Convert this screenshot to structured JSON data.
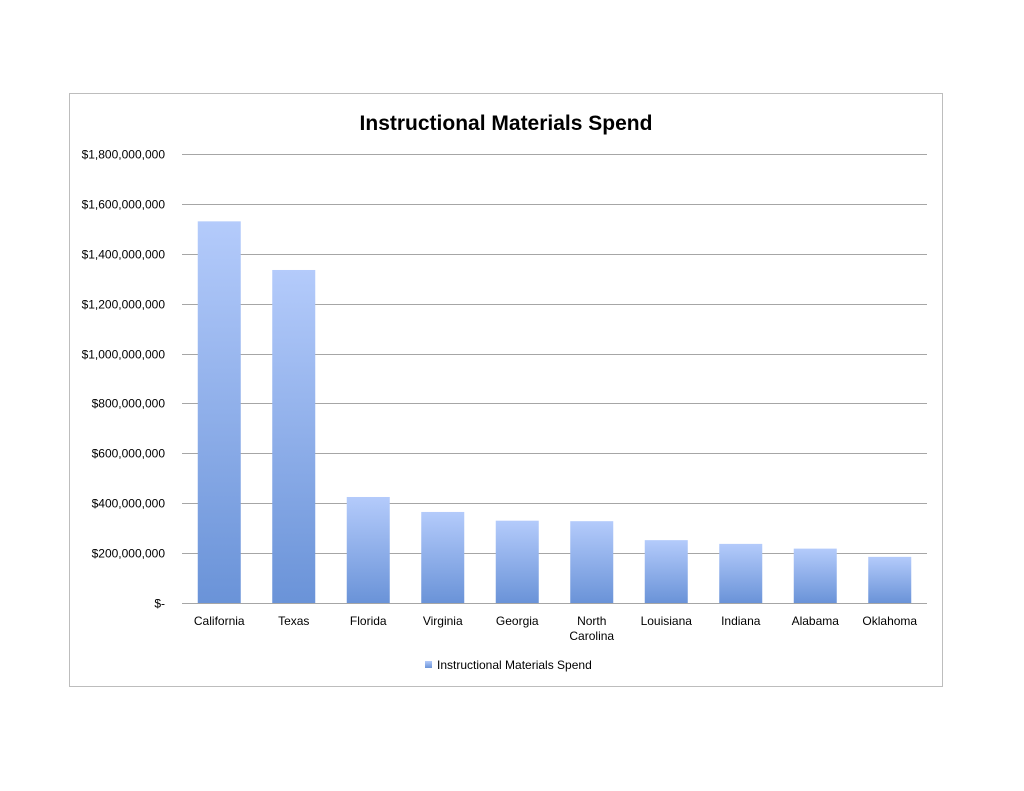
{
  "chart_data": {
    "type": "bar",
    "title": "Instructional Materials Spend",
    "xlabel": "",
    "ylabel": "",
    "categories": [
      "California",
      "Texas",
      "Florida",
      "Virginia",
      "Georgia",
      "North Carolina",
      "Louisiana",
      "Indiana",
      "Alabama",
      "Oklahoma"
    ],
    "series": [
      {
        "name": "Instructional Materials Spend",
        "values": [
          1530000000,
          1335000000,
          425000000,
          365000000,
          330000000,
          328000000,
          252000000,
          237000000,
          218000000,
          185000000
        ]
      }
    ],
    "ylim": [
      0,
      1800000000
    ],
    "yticks": [
      0,
      200000000,
      400000000,
      600000000,
      800000000,
      1000000000,
      1200000000,
      1400000000,
      1600000000,
      1800000000
    ],
    "ytick_labels": [
      "$-",
      "$200,000,000",
      "$400,000,000",
      "$600,000,000",
      "$800,000,000",
      "$1,000,000,000",
      "$1,200,000,000",
      "$1,400,000,000",
      "$1,600,000,000",
      "$1,800,000,000"
    ],
    "grid": true,
    "legend_position": "bottom",
    "colors": {
      "bar_top": "#b4cbfb",
      "bar_bottom": "#6a93d8",
      "grid": "#a6a6a6"
    }
  }
}
